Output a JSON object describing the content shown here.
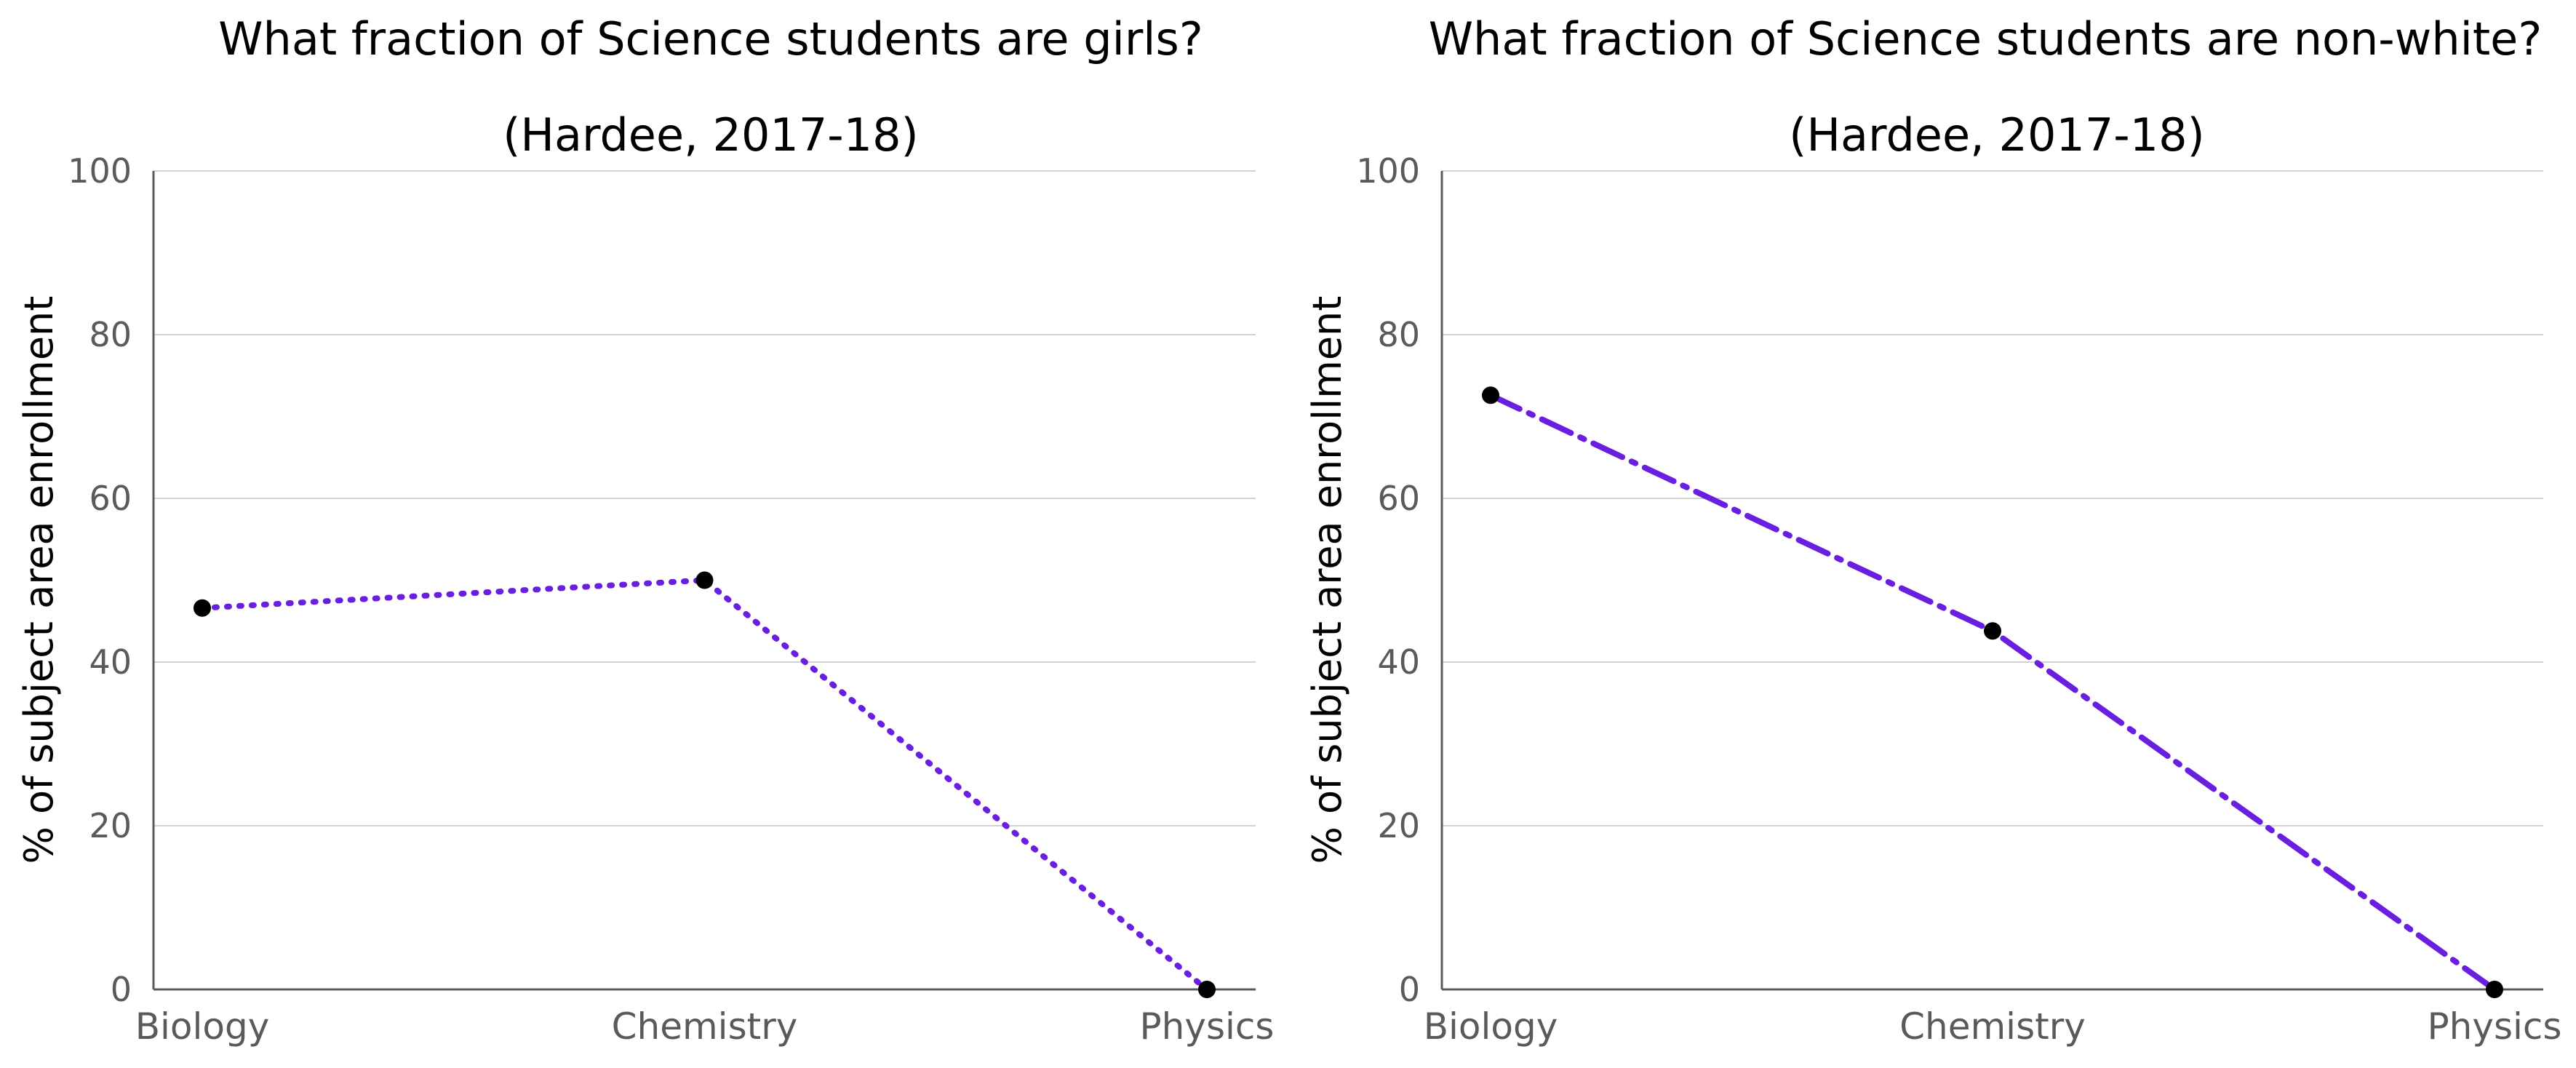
{
  "chart_data": [
    {
      "type": "line",
      "title": "What fraction of Science students are girls?",
      "subtitle": "(Hardee, 2017-18)",
      "xlabel": "",
      "ylabel": "% of subject area enrollment",
      "categories": [
        "Biology",
        "Chemistry",
        "Physics"
      ],
      "series": [
        {
          "values": [
            46.6,
            50.0,
            0.0
          ],
          "color": "#6a1fe0",
          "line_style": "dotted"
        }
      ],
      "ylim": [
        0,
        100
      ],
      "yticks": [
        0,
        20,
        40,
        60,
        80,
        100
      ],
      "grid": true,
      "legend": "none"
    },
    {
      "type": "line",
      "title": "What fraction of Science students are non-white?",
      "subtitle": "(Hardee, 2017-18)",
      "xlabel": "",
      "ylabel": "% of subject area enrollment",
      "categories": [
        "Biology",
        "Chemistry",
        "Physics"
      ],
      "series": [
        {
          "values": [
            72.6,
            43.8,
            0.0
          ],
          "color": "#6a1fe0",
          "line_style": "dashdot"
        }
      ],
      "ylim": [
        0,
        100
      ],
      "yticks": [
        0,
        20,
        40,
        60,
        80,
        100
      ],
      "grid": true,
      "legend": "none"
    }
  ]
}
